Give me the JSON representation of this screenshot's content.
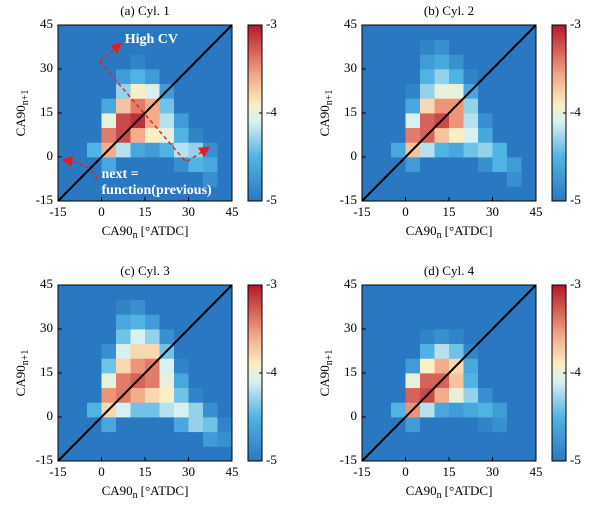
{
  "chart_data": [
    {
      "type": "heatmap",
      "title": "(a) Cyl. 1",
      "xlabel": "CA90",
      "xlabel_sub": "n",
      "xlabel_unit": "[°ATDC]",
      "ylabel": "CA90",
      "ylabel_sub": "n+1",
      "xlim": [
        -15,
        45
      ],
      "ylim": [
        -15,
        45
      ],
      "xticks": [
        -15,
        0,
        15,
        30,
        45
      ],
      "yticks": [
        -15,
        0,
        15,
        30,
        45
      ],
      "xbins": [
        -15,
        -10,
        -5,
        0,
        5,
        10,
        15,
        20,
        25,
        30,
        35,
        40,
        45
      ],
      "ybins": [
        -15,
        -10,
        -5,
        0,
        5,
        10,
        15,
        20,
        25,
        30,
        35,
        40,
        45
      ],
      "clim": [
        -5,
        -3
      ],
      "cticks": [
        -3,
        -4,
        -5
      ],
      "diagonal": true,
      "annotations": [
        "High CV",
        "next =",
        "function(previous)"
      ],
      "z": [
        [
          -5,
          -5,
          -5,
          -5,
          -5,
          -5,
          -5,
          -5,
          -5,
          -5,
          -5,
          -5
        ],
        [
          -5,
          -5,
          -5,
          -5,
          -5,
          -5,
          -5,
          -5,
          -5,
          -5,
          -4.8,
          -5
        ],
        [
          -5,
          -5,
          -5,
          -4.6,
          -5,
          -5,
          -5,
          -5,
          -4.8,
          -4.5,
          -4.6,
          -5
        ],
        [
          -5,
          -5,
          -4.5,
          -3.6,
          -4.2,
          -4.6,
          -4.7,
          -4.5,
          -4.2,
          -4.3,
          -4.8,
          -5
        ],
        [
          -5,
          -5,
          -5,
          -3.4,
          -3.2,
          -3.6,
          -3.9,
          -4,
          -4.5,
          -4.9,
          -5,
          -5
        ],
        [
          -5,
          -5,
          -5,
          -4,
          -3.2,
          -3.1,
          -3.6,
          -4.2,
          -4.7,
          -5,
          -5,
          -5
        ],
        [
          -5,
          -5,
          -5,
          -4.6,
          -3.7,
          -3.4,
          -3.6,
          -4.4,
          -5,
          -5,
          -5,
          -5
        ],
        [
          -5,
          -5,
          -5,
          -5,
          -4.3,
          -3.9,
          -4.1,
          -4.7,
          -5,
          -5,
          -5,
          -5
        ],
        [
          -5,
          -5,
          -5,
          -5,
          -4.7,
          -4.5,
          -4.7,
          -5,
          -5,
          -5,
          -5,
          -5
        ],
        [
          -5,
          -5,
          -5,
          -5,
          -5,
          -4.9,
          -5,
          -5,
          -5,
          -5,
          -5,
          -5
        ],
        [
          -5,
          -5,
          -5,
          -5,
          -5,
          -5,
          -5,
          -5,
          -5,
          -5,
          -5,
          -5
        ],
        [
          -5,
          -5,
          -5,
          -5,
          -5,
          -5,
          -5,
          -5,
          -5,
          -5,
          -5,
          -5
        ]
      ]
    },
    {
      "type": "heatmap",
      "title": "(b) Cyl. 2",
      "xlabel": "CA90",
      "xlabel_sub": "n",
      "xlabel_unit": "[°ATDC]",
      "ylabel": "CA90",
      "ylabel_sub": "n+1",
      "xlim": [
        -15,
        45
      ],
      "ylim": [
        -15,
        45
      ],
      "xticks": [
        -15,
        0,
        15,
        30,
        45
      ],
      "yticks": [
        -15,
        0,
        15,
        30,
        45
      ],
      "xbins": [
        -15,
        -10,
        -5,
        0,
        5,
        10,
        15,
        20,
        25,
        30,
        35,
        40,
        45
      ],
      "ybins": [
        -15,
        -10,
        -5,
        0,
        5,
        10,
        15,
        20,
        25,
        30,
        35,
        40,
        45
      ],
      "clim": [
        -5,
        -3
      ],
      "cticks": [
        -3,
        -4,
        -5
      ],
      "diagonal": true,
      "z": [
        [
          -5,
          -5,
          -5,
          -5,
          -5,
          -5,
          -5,
          -5,
          -5,
          -5,
          -5,
          -5
        ],
        [
          -5,
          -5,
          -5,
          -5,
          -5,
          -5,
          -5,
          -5,
          -5,
          -5,
          -4.8,
          -5
        ],
        [
          -5,
          -5,
          -5,
          -4.7,
          -5,
          -5,
          -5,
          -5,
          -4.8,
          -4.5,
          -4.7,
          -5
        ],
        [
          -5,
          -5,
          -4.6,
          -3.7,
          -4.2,
          -4.5,
          -4.6,
          -4.4,
          -4.3,
          -4.5,
          -5,
          -5
        ],
        [
          -5,
          -5,
          -5,
          -3.4,
          -3.3,
          -3.7,
          -3.9,
          -4.1,
          -4.6,
          -5,
          -5,
          -5
        ],
        [
          -5,
          -5,
          -5,
          -4.1,
          -3.3,
          -3.2,
          -3.5,
          -4.2,
          -4.8,
          -5,
          -5,
          -5
        ],
        [
          -5,
          -5,
          -5,
          -4.6,
          -3.8,
          -3.5,
          -3.5,
          -4.3,
          -5,
          -5,
          -5,
          -5
        ],
        [
          -5,
          -5,
          -5,
          -4.9,
          -4.3,
          -4,
          -4,
          -4.6,
          -5,
          -5,
          -5,
          -5
        ],
        [
          -5,
          -5,
          -5,
          -5,
          -4.5,
          -4.3,
          -4.5,
          -4.9,
          -5,
          -5,
          -5,
          -5
        ],
        [
          -5,
          -5,
          -5,
          -5,
          -4.7,
          -4.6,
          -4.8,
          -5,
          -5,
          -5,
          -5,
          -5
        ],
        [
          -5,
          -5,
          -5,
          -5,
          -4.9,
          -4.8,
          -5,
          -5,
          -5,
          -5,
          -5,
          -5
        ],
        [
          -5,
          -5,
          -5,
          -5,
          -5,
          -5,
          -5,
          -5,
          -5,
          -5,
          -5,
          -5
        ]
      ]
    },
    {
      "type": "heatmap",
      "title": "(c) Cyl. 3",
      "xlabel": "CA90",
      "xlabel_sub": "n",
      "xlabel_unit": "[°ATDC]",
      "ylabel": "CA90",
      "ylabel_sub": "n+1",
      "xlim": [
        -15,
        45
      ],
      "ylim": [
        -15,
        45
      ],
      "xticks": [
        -15,
        0,
        15,
        30,
        45
      ],
      "yticks": [
        -15,
        0,
        15,
        30,
        45
      ],
      "xbins": [
        -15,
        -10,
        -5,
        0,
        5,
        10,
        15,
        20,
        25,
        30,
        35,
        40,
        45
      ],
      "ybins": [
        -15,
        -10,
        -5,
        0,
        5,
        10,
        15,
        20,
        25,
        30,
        35,
        40,
        45
      ],
      "clim": [
        -5,
        -3
      ],
      "cticks": [
        -3,
        -4,
        -5
      ],
      "diagonal": true,
      "z": [
        [
          -5,
          -5,
          -5,
          -5,
          -5,
          -5,
          -5,
          -5,
          -5,
          -5,
          -5,
          -5
        ],
        [
          -5,
          -5,
          -5,
          -5,
          -5,
          -5,
          -5,
          -5,
          -5,
          -5,
          -4.7,
          -4.8
        ],
        [
          -5,
          -5,
          -5,
          -4.6,
          -5,
          -5,
          -5,
          -5,
          -4.6,
          -4.3,
          -4.4,
          -4.9
        ],
        [
          -5,
          -5,
          -4.5,
          -3.8,
          -4.1,
          -4.4,
          -4.4,
          -4.2,
          -4.1,
          -4.3,
          -4.8,
          -5
        ],
        [
          -5,
          -5,
          -5,
          -3.5,
          -3.4,
          -3.6,
          -3.8,
          -3.9,
          -4.4,
          -4.9,
          -5,
          -5
        ],
        [
          -5,
          -5,
          -5,
          -4,
          -3.4,
          -3.3,
          -3.4,
          -4,
          -4.6,
          -5,
          -5,
          -5
        ],
        [
          -5,
          -5,
          -5,
          -4.4,
          -3.8,
          -3.5,
          -3.4,
          -4.1,
          -4.9,
          -5,
          -5,
          -5
        ],
        [
          -5,
          -5,
          -5,
          -4.8,
          -4.1,
          -3.8,
          -3.8,
          -4.4,
          -5,
          -5,
          -5,
          -5
        ],
        [
          -5,
          -5,
          -5,
          -5,
          -4.4,
          -4.1,
          -4.3,
          -4.8,
          -5,
          -5,
          -5,
          -5
        ],
        [
          -5,
          -5,
          -5,
          -5,
          -4.6,
          -4.5,
          -4.7,
          -5,
          -5,
          -5,
          -5,
          -5
        ],
        [
          -5,
          -5,
          -5,
          -5,
          -4.9,
          -4.8,
          -5,
          -5,
          -5,
          -5,
          -5,
          -5
        ],
        [
          -5,
          -5,
          -5,
          -5,
          -5,
          -5,
          -5,
          -5,
          -5,
          -5,
          -5,
          -5
        ]
      ]
    },
    {
      "type": "heatmap",
      "title": "(d) Cyl. 4",
      "xlabel": "CA90",
      "xlabel_sub": "n",
      "xlabel_unit": "[°ATDC]",
      "ylabel": "CA90",
      "ylabel_sub": "n+1",
      "xlim": [
        -15,
        45
      ],
      "ylim": [
        -15,
        45
      ],
      "xticks": [
        -15,
        0,
        15,
        30,
        45
      ],
      "yticks": [
        -15,
        0,
        15,
        30,
        45
      ],
      "xbins": [
        -15,
        -10,
        -5,
        0,
        5,
        10,
        15,
        20,
        25,
        30,
        35,
        40,
        45
      ],
      "ybins": [
        -15,
        -10,
        -5,
        0,
        5,
        10,
        15,
        20,
        25,
        30,
        35,
        40,
        45
      ],
      "clim": [
        -5,
        -3
      ],
      "cticks": [
        -3,
        -4,
        -5
      ],
      "diagonal": true,
      "z": [
        [
          -5,
          -5,
          -5,
          -5,
          -5,
          -5,
          -5,
          -5,
          -5,
          -5,
          -5,
          -5
        ],
        [
          -5,
          -5,
          -5,
          -5,
          -5,
          -5,
          -5,
          -5,
          -5,
          -5,
          -5,
          -5
        ],
        [
          -5,
          -5,
          -5,
          -4.7,
          -5,
          -5,
          -5,
          -5,
          -4.9,
          -4.8,
          -5,
          -5
        ],
        [
          -5,
          -5,
          -4.5,
          -3.5,
          -4.2,
          -4.6,
          -4.7,
          -4.6,
          -4.5,
          -4.7,
          -5,
          -5
        ],
        [
          -5,
          -5,
          -5,
          -3.3,
          -3.2,
          -3.6,
          -4,
          -4.3,
          -4.8,
          -5,
          -5,
          -5
        ],
        [
          -5,
          -5,
          -5,
          -4,
          -3.3,
          -3.3,
          -3.7,
          -4.5,
          -5,
          -5,
          -5,
          -5
        ],
        [
          -5,
          -5,
          -5,
          -4.7,
          -3.9,
          -3.6,
          -3.8,
          -4.6,
          -5,
          -5,
          -5,
          -5
        ],
        [
          -5,
          -5,
          -5,
          -5,
          -4.5,
          -4.2,
          -4.4,
          -4.9,
          -5,
          -5,
          -5,
          -5
        ],
        [
          -5,
          -5,
          -5,
          -5,
          -4.9,
          -4.8,
          -4.9,
          -5,
          -5,
          -5,
          -5,
          -5
        ],
        [
          -5,
          -5,
          -5,
          -5,
          -5,
          -5,
          -5,
          -5,
          -5,
          -5,
          -5,
          -5
        ],
        [
          -5,
          -5,
          -5,
          -5,
          -5,
          -5,
          -5,
          -5,
          -5,
          -5,
          -5,
          -5
        ],
        [
          -5,
          -5,
          -5,
          -5,
          -5,
          -5,
          -5,
          -5,
          -5,
          -5,
          -5,
          -5
        ]
      ]
    }
  ]
}
